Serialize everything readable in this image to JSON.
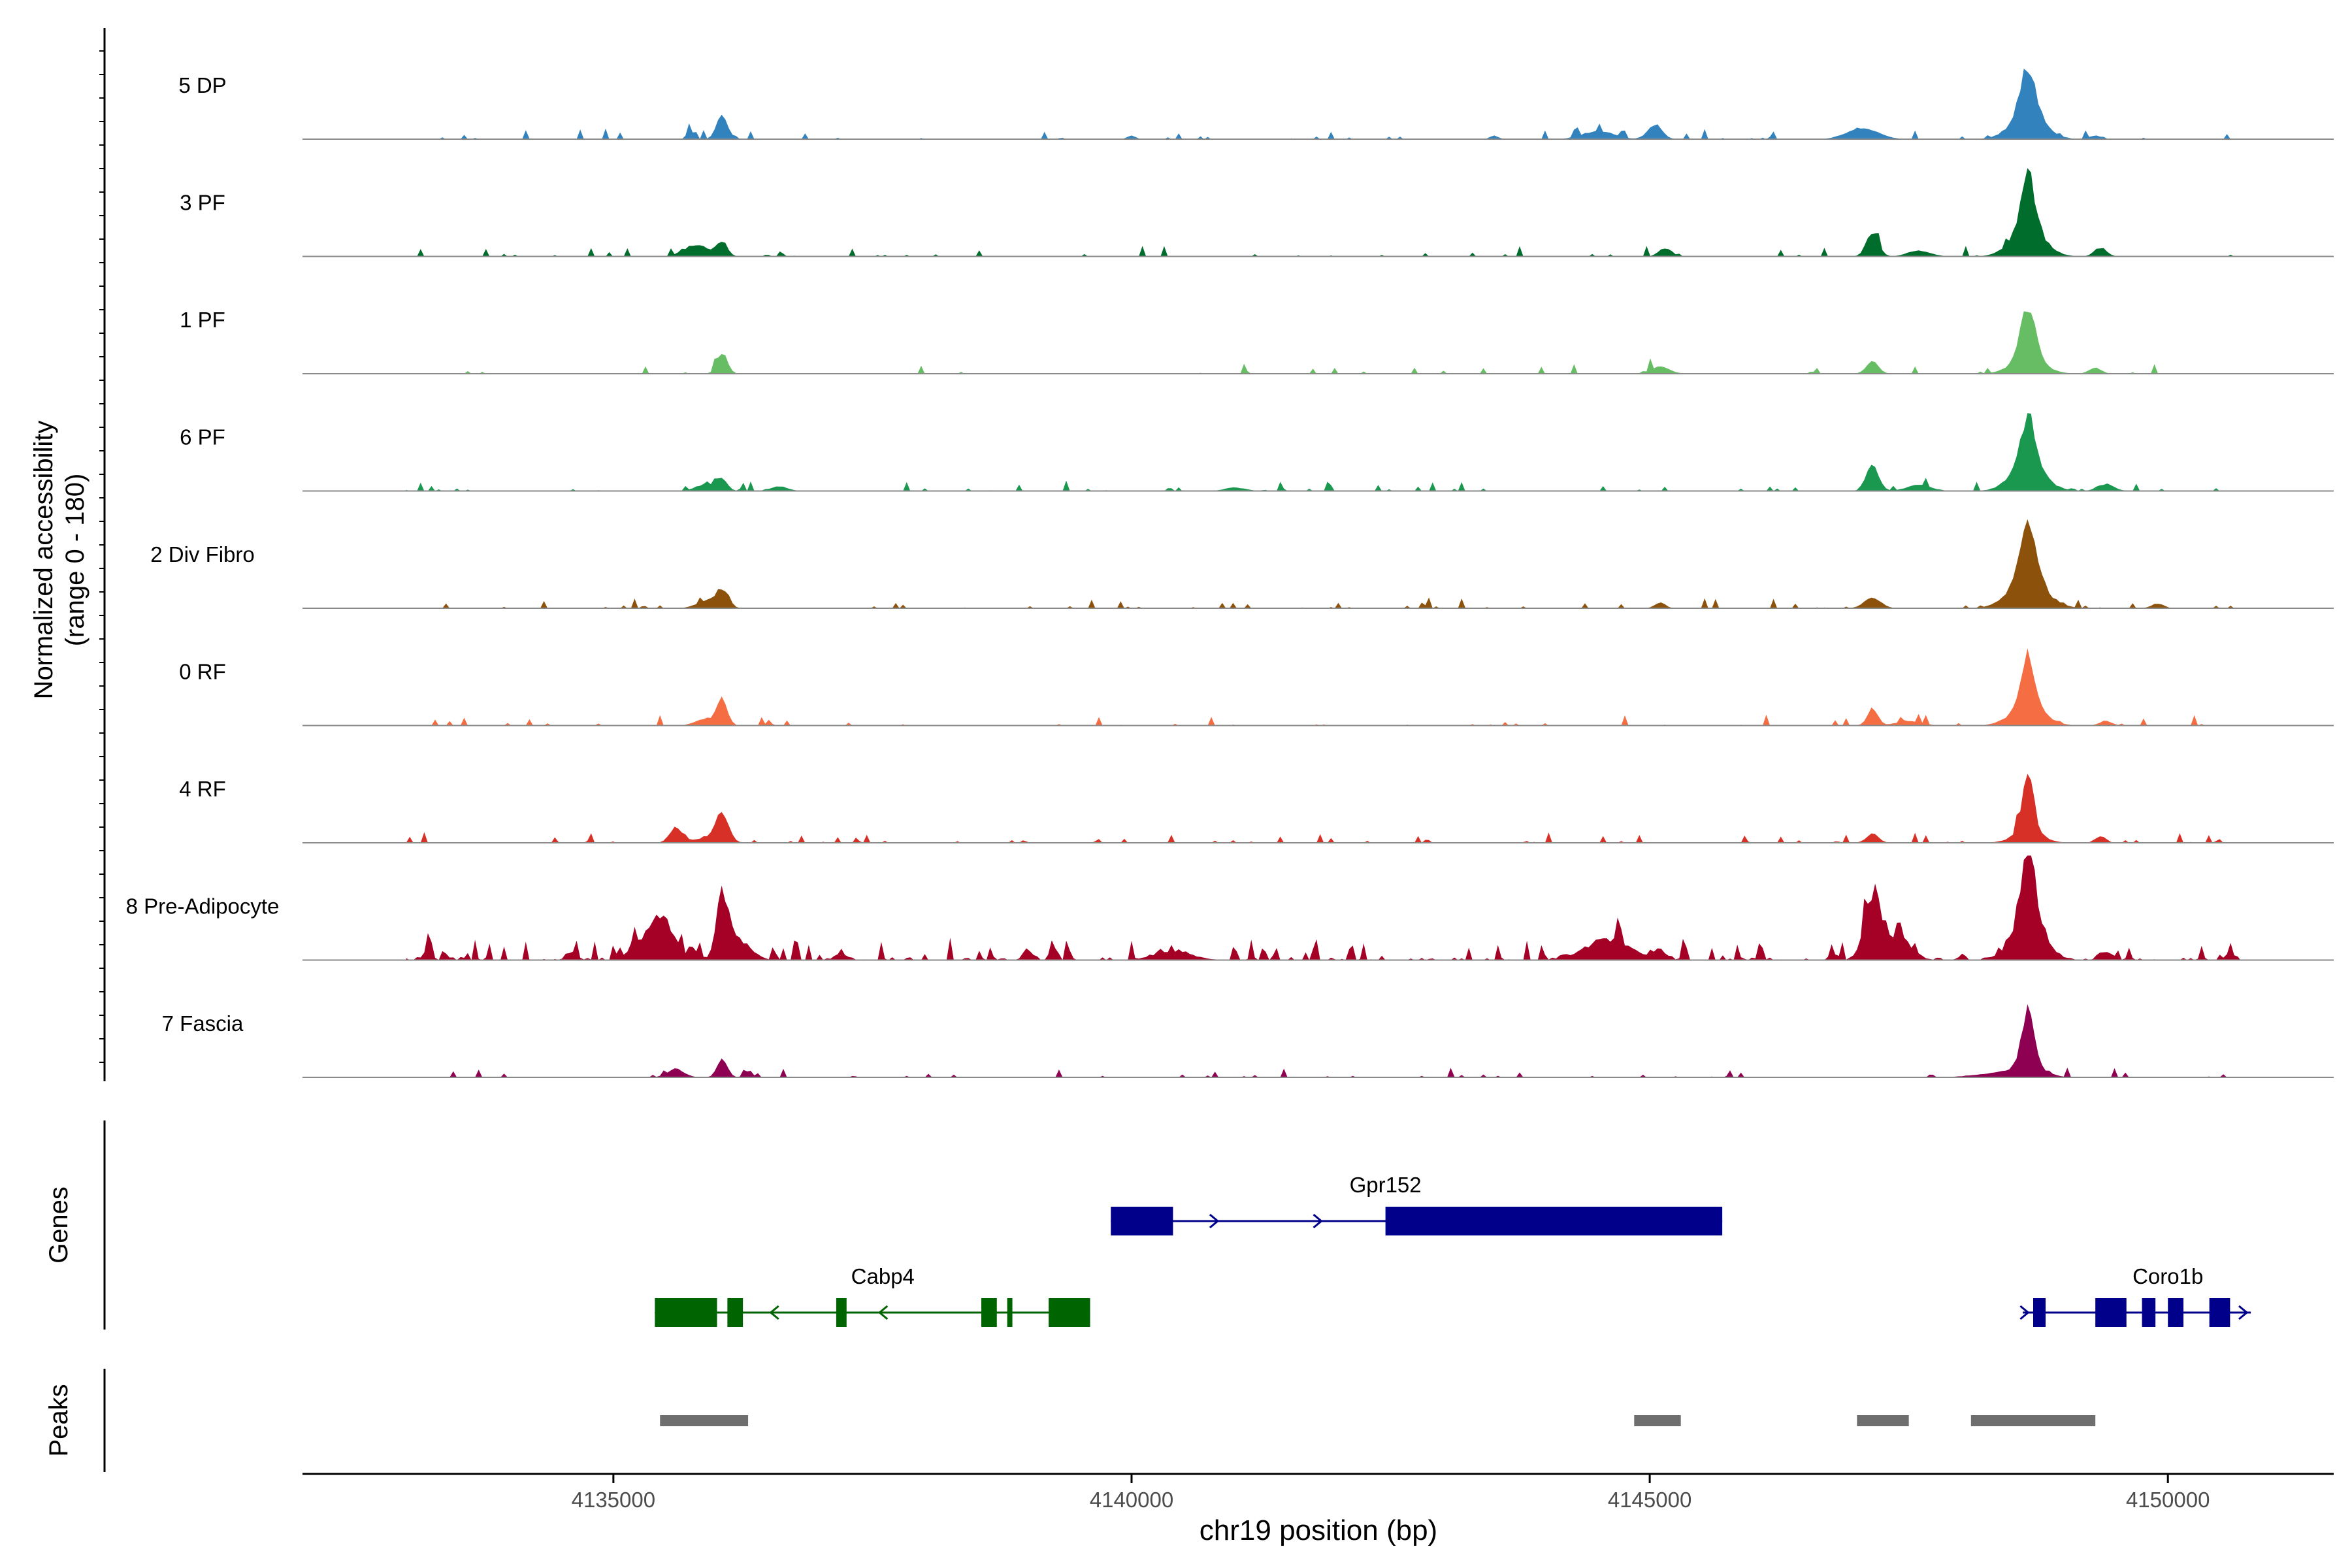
{
  "chart_data": {
    "type": "area",
    "chromosome": "chr19",
    "xlabel": "chr19 position (bp)",
    "xlim": [
      4132000,
      4151600
    ],
    "x_ticks": [
      4135000,
      4140000,
      4145000,
      4150000
    ],
    "x_tick_labels": [
      "4135000",
      "4140000",
      "4145000",
      "4150000"
    ],
    "coverage_ylabel": "Normalized accessibility",
    "coverage_ylabel_range": "(range 0 - 180)",
    "ylim": [
      0,
      180
    ],
    "track_extent": [
      4133000,
      4150700
    ],
    "genes_label": "Genes",
    "peaks_label": "Peaks",
    "series": [
      {
        "name": "5 DP",
        "color": "#3182BD",
        "noise": 0.035,
        "seed": 5,
        "peaks": [
          [
            4136050,
            55,
            40
          ],
          [
            4135750,
            30,
            12
          ],
          [
            4140000,
            40,
            6
          ],
          [
            4143500,
            40,
            6
          ],
          [
            4144500,
            150,
            14
          ],
          [
            4145050,
            70,
            25
          ],
          [
            4147050,
            150,
            20
          ],
          [
            4148650,
            70,
            80
          ],
          [
            4148650,
            160,
            45
          ],
          [
            4149300,
            60,
            6
          ]
        ]
      },
      {
        "name": "3 PF",
        "color": "#006D2C",
        "noise": 0.04,
        "seed": 3,
        "peaks": [
          [
            4135800,
            120,
            20
          ],
          [
            4136050,
            50,
            25
          ],
          [
            4145150,
            60,
            15
          ],
          [
            4147150,
            60,
            40
          ],
          [
            4147600,
            110,
            10
          ],
          [
            4148650,
            70,
            95
          ],
          [
            4148650,
            160,
            45
          ],
          [
            4149350,
            60,
            15
          ]
        ]
      },
      {
        "name": "1 PF",
        "color": "#66BD63",
        "noise": 0.03,
        "seed": 1,
        "peaks": [
          [
            4136050,
            50,
            35
          ],
          [
            4145100,
            90,
            12
          ],
          [
            4147150,
            60,
            20
          ],
          [
            4148650,
            70,
            90
          ],
          [
            4148650,
            160,
            25
          ],
          [
            4149300,
            60,
            10
          ]
        ]
      },
      {
        "name": "6 PF",
        "color": "#1A9850",
        "noise": 0.06,
        "seed": 6,
        "peaks": [
          [
            4135900,
            100,
            12
          ],
          [
            4136050,
            50,
            20
          ],
          [
            4136600,
            80,
            8
          ],
          [
            4141000,
            100,
            6
          ],
          [
            4147150,
            60,
            45
          ],
          [
            4147600,
            120,
            10
          ],
          [
            4148650,
            70,
            85
          ],
          [
            4148650,
            160,
            45
          ],
          [
            4149400,
            80,
            12
          ]
        ]
      },
      {
        "name": "2 Div Fibro",
        "color": "#8C510A",
        "noise": 0.04,
        "seed": 2,
        "peaks": [
          [
            4135900,
            100,
            12
          ],
          [
            4136050,
            60,
            30
          ],
          [
            4145100,
            50,
            10
          ],
          [
            4147150,
            80,
            18
          ],
          [
            4148650,
            80,
            100
          ],
          [
            4148650,
            180,
            45
          ],
          [
            4149900,
            60,
            8
          ]
        ]
      },
      {
        "name": "0 RF",
        "color": "#F46D43",
        "noise": 0.035,
        "seed": 0,
        "peaks": [
          [
            4135900,
            100,
            12
          ],
          [
            4136050,
            50,
            40
          ],
          [
            4136500,
            30,
            6
          ],
          [
            4147150,
            50,
            30
          ],
          [
            4147500,
            120,
            8
          ],
          [
            4148650,
            60,
            90
          ],
          [
            4148650,
            160,
            35
          ],
          [
            4149400,
            60,
            8
          ]
        ]
      },
      {
        "name": "4 RF",
        "color": "#D73027",
        "noise": 0.045,
        "seed": 4,
        "peaks": [
          [
            4135600,
            60,
            25
          ],
          [
            4136050,
            60,
            50
          ],
          [
            4135900,
            150,
            8
          ],
          [
            4147150,
            60,
            15
          ],
          [
            4148650,
            55,
            100
          ],
          [
            4148650,
            140,
            20
          ],
          [
            4149350,
            50,
            12
          ]
        ]
      },
      {
        "name": "8 Pre-Adipocyte",
        "color": "#A50026",
        "noise": 0.16,
        "seed": 8,
        "peaks": [
          [
            4135450,
            130,
            75
          ],
          [
            4135200,
            50,
            25
          ],
          [
            4136050,
            55,
            105
          ],
          [
            4136200,
            120,
            35
          ],
          [
            4134600,
            50,
            15
          ],
          [
            4137200,
            60,
            10
          ],
          [
            4139000,
            45,
            18
          ],
          [
            4140400,
            180,
            15
          ],
          [
            4144600,
            220,
            35
          ],
          [
            4145100,
            60,
            15
          ],
          [
            4147150,
            80,
            110
          ],
          [
            4147400,
            120,
            40
          ],
          [
            4148650,
            70,
            125
          ],
          [
            4148650,
            160,
            60
          ],
          [
            4149400,
            60,
            15
          ],
          [
            4150600,
            40,
            15
          ],
          [
            4133200,
            40,
            15
          ],
          [
            4146800,
            30,
            10
          ]
        ]
      },
      {
        "name": "7 Fascia",
        "color": "#8E0152",
        "noise": 0.04,
        "seed": 7,
        "peaks": [
          [
            4135600,
            80,
            15
          ],
          [
            4136050,
            50,
            30
          ],
          [
            4136300,
            40,
            10
          ],
          [
            4148650,
            60,
            95
          ],
          [
            4148650,
            150,
            20
          ],
          [
            4148300,
            200,
            6
          ]
        ]
      }
    ],
    "genes": [
      {
        "name": "Gpr152",
        "strand": "+",
        "color": "#00008B",
        "start": 4139800,
        "end": 4145700,
        "exons": [
          [
            4139800,
            4140400
          ],
          [
            4142450,
            4145700
          ]
        ],
        "arrows": [
          4140800,
          4141800
        ]
      },
      {
        "name": "Cabp4",
        "strand": "-",
        "color": "#006400",
        "start": 4135400,
        "end": 4139600,
        "exons": [
          [
            4135400,
            4136000
          ],
          [
            4136100,
            4136250
          ],
          [
            4137150,
            4137250
          ],
          [
            4138550,
            4138700
          ],
          [
            4138800,
            4138850
          ],
          [
            4139200,
            4139600
          ]
        ],
        "arrows": [
          4136550,
          4137600
        ]
      },
      {
        "name": "Coro1b",
        "strand": "+",
        "color": "#00008B",
        "start": 4148600,
        "end": 4150800,
        "exons": [
          [
            4148700,
            4148820
          ],
          [
            4149300,
            4149600
          ],
          [
            4149750,
            4149880
          ],
          [
            4150000,
            4150150
          ],
          [
            4150400,
            4150600
          ]
        ],
        "arrows": [
          4148620,
          4150730
        ]
      }
    ],
    "peaks": [
      [
        4135450,
        4136300
      ],
      [
        4144850,
        4145300
      ],
      [
        4147000,
        4147500
      ],
      [
        4148100,
        4149300
      ]
    ],
    "grid": false,
    "legend": "none"
  }
}
